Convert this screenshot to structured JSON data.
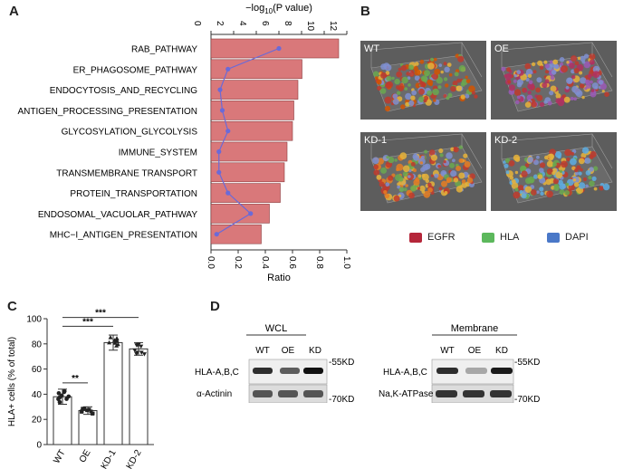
{
  "panels": {
    "A": "A",
    "B": "B",
    "C": "C",
    "D": "D"
  },
  "chart_data": [
    {
      "type": "bar",
      "panel": "A",
      "categories": [
        "RAB_PATHWAY",
        "ER_PHAGOSOME_PATHWAY",
        "ENDOCYTOSIS_AND_RECYCLING",
        "ANTIGEN_PROCESSING_PRESENTATION",
        "GLYCOSYLATION_GLYCOLYSIS",
        "IMMUNE_SYSTEM",
        "TRANSMEMBRANE TRANSPORT",
        "PROTEIN_TRANSPORTATION",
        "ENDOSOMAL_VACUOLAR_PATHWAY",
        "MHC−I_ANTIGEN_PRESENTATION"
      ],
      "series": [
        {
          "name": "Ratio",
          "values": [
            0.94,
            0.67,
            0.64,
            0.61,
            0.6,
            0.56,
            0.54,
            0.51,
            0.43,
            0.37
          ]
        },
        {
          "name": "−log10(P value)",
          "values": [
            6.0,
            1.5,
            0.8,
            1.0,
            1.5,
            0.7,
            0.7,
            1.5,
            3.5,
            0.5
          ]
        }
      ],
      "xlabel": "Ratio",
      "x2label_prefix": "−log",
      "x2label_sub": "10",
      "x2label_suffix": "(P value)",
      "xlim": [
        0,
        1.0
      ],
      "x2lim": [
        0,
        12
      ],
      "xticks": [
        "0.0",
        "0.2",
        "0.4",
        "0.6",
        "0.8",
        "1.0"
      ],
      "x2ticks": [
        "0",
        "2",
        "4",
        "6",
        "8",
        "10",
        "12"
      ],
      "bar_color": "#d9787a",
      "line_color": "#6a6ad8"
    },
    {
      "type": "bar",
      "panel": "C",
      "categories": [
        "WT",
        "OE",
        "KD-1",
        "KD-2"
      ],
      "values": [
        38,
        27,
        81,
        76
      ],
      "ylabel": "HLA+ cells (% of total)",
      "ylim": [
        0,
        100
      ],
      "yticks": [
        "0",
        "20",
        "40",
        "60",
        "80",
        "100"
      ],
      "significance": [
        {
          "pair": [
            "WT",
            "OE"
          ],
          "label": "**"
        },
        {
          "pair": [
            "WT",
            "KD-1"
          ],
          "label": "***"
        },
        {
          "pair": [
            "WT",
            "KD-2"
          ],
          "label": "***"
        }
      ]
    }
  ],
  "panelB": {
    "tiles": [
      "WT",
      "OE",
      "KD-1",
      "KD-2"
    ],
    "legend": [
      {
        "label": "EGFR",
        "color": "#b5263a"
      },
      {
        "label": "HLA",
        "color": "#5cb85c"
      },
      {
        "label": "DAPI",
        "color": "#4a78c8"
      }
    ]
  },
  "panelD": {
    "left": {
      "title": "WCL",
      "lanes": [
        "WT",
        "OE",
        "KD"
      ],
      "row_labels": [
        "HLA-A,B,C",
        "α-Actinin"
      ],
      "markers": [
        "55KD",
        "70KD"
      ],
      "band_intensity": [
        0.85,
        0.6,
        1.0
      ]
    },
    "right": {
      "title": "Membrane",
      "lanes": [
        "WT",
        "OE",
        "KD"
      ],
      "row_labels": [
        "HLA-A,B,C",
        "Na,K-ATPase"
      ],
      "markers": [
        "55KD",
        "70KD"
      ],
      "band_intensity": [
        0.85,
        0.2,
        0.95
      ]
    }
  }
}
